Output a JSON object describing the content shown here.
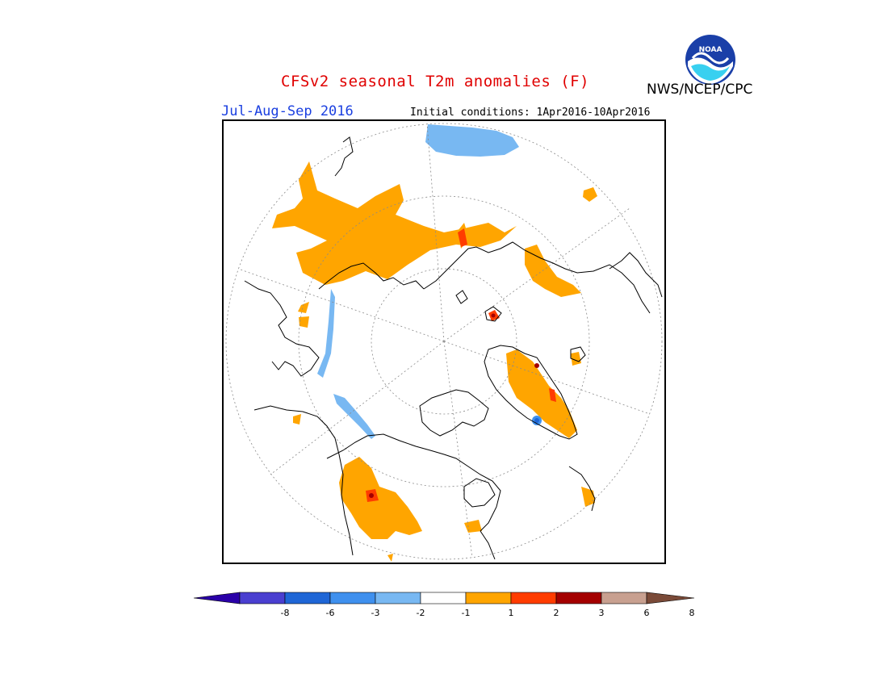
{
  "title": "CFSv2 seasonal T2m anomalies (F)",
  "agency": "NWS/NCEP/CPC",
  "logo_text": "NOAA",
  "season": "Jul-Aug-Sep 2016",
  "initial_conditions": "Initial conditions: 1Apr2016-10Apr2016",
  "map": {
    "projection": "north-polar-stereographic",
    "variable": "2m temperature anomaly",
    "units": "F"
  },
  "colorbar": {
    "labels": [
      "-8",
      "-6",
      "-3",
      "-2",
      "-1",
      "1",
      "2",
      "3",
      "6",
      "8"
    ],
    "colors": [
      "#2a00a8",
      "#4a3fd0",
      "#1f66d6",
      "#3f90ee",
      "#78b8f2",
      "#ffffff",
      "#ffa500",
      "#ff3c00",
      "#a40000",
      "#c8a090",
      "#7a4a38"
    ]
  },
  "colors": {
    "title": "#e00000",
    "season": "#1a3fe0",
    "warm": "#ffa500",
    "hot": "#ff3c00",
    "very_hot": "#a40000",
    "cool": "#78b8f2",
    "cold": "#3f90ee",
    "colder": "#1f66d6"
  }
}
